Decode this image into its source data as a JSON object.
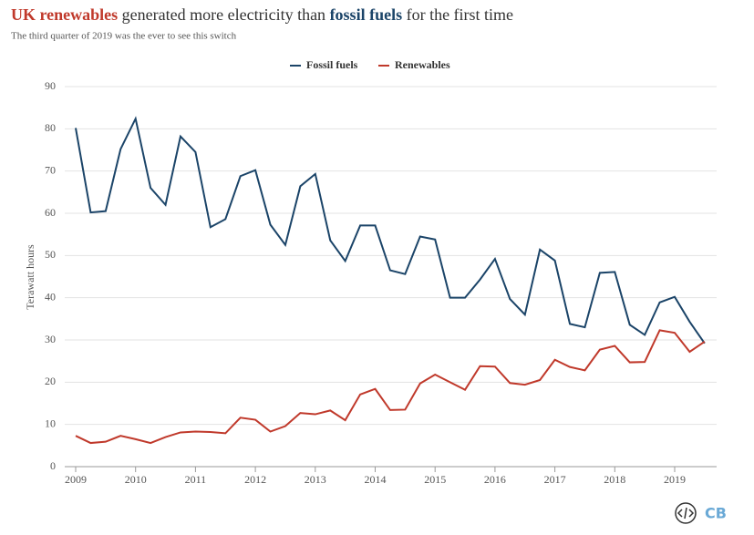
{
  "chart_data": {
    "type": "line",
    "title": [
      "UK renewables",
      " generated more electricity than ",
      "fossil fuels",
      " for the first time"
    ],
    "title_colors": [
      "#c0392b",
      "#333333",
      "#1b4468",
      "#333333"
    ],
    "subtitle": "The third quarter of 2019 was the ever to see this switch",
    "y_label": "Terawatt hours",
    "logo": "CB",
    "x": [
      2009,
      2009.25,
      2009.5,
      2009.75,
      2010,
      2010.25,
      2010.5,
      2010.75,
      2011,
      2011.25,
      2011.5,
      2011.75,
      2012,
      2012.25,
      2012.5,
      2012.75,
      2013,
      2013.25,
      2013.5,
      2013.75,
      2014,
      2014.25,
      2014.5,
      2014.75,
      2015,
      2015.25,
      2015.5,
      2015.75,
      2016,
      2016.25,
      2016.5,
      2016.75,
      2017,
      2017.25,
      2017.5,
      2017.75,
      2018,
      2018.25,
      2018.5,
      2018.75,
      2019,
      2019.25,
      2019.5
    ],
    "series": [
      {
        "name": "Fossil fuels",
        "color": "#1b4468",
        "values": [
          80.2,
          60.2,
          60.5,
          75.2,
          82.4,
          66.0,
          62.0,
          78.2,
          74.5,
          56.7,
          58.6,
          68.8,
          70.2,
          57.3,
          52.5,
          66.4,
          69.3,
          53.6,
          48.7,
          57.1,
          57.1,
          46.5,
          45.6,
          54.5,
          53.8,
          40.0,
          40.0,
          44.3,
          49.2,
          39.7,
          36.0,
          51.4,
          48.8,
          33.8,
          33.0,
          45.9,
          46.1,
          33.6,
          31.2,
          38.9,
          40.2,
          34.3,
          29.2
        ]
      },
      {
        "name": "Renewables",
        "color": "#c0392b",
        "values": [
          7.3,
          5.6,
          5.9,
          7.3,
          6.5,
          5.6,
          7.0,
          8.1,
          8.3,
          8.2,
          7.9,
          11.6,
          11.1,
          8.3,
          9.6,
          12.7,
          12.4,
          13.3,
          11.0,
          17.1,
          18.4,
          13.4,
          13.5,
          19.7,
          21.8,
          20.0,
          18.2,
          23.8,
          23.7,
          19.8,
          19.4,
          20.5,
          25.3,
          23.6,
          22.8,
          27.7,
          28.6,
          24.7,
          24.8,
          32.3,
          31.7,
          27.2,
          29.6
        ]
      }
    ],
    "xlim": [
      2009,
      2019.7
    ],
    "xticks": [
      2009,
      2010,
      2011,
      2012,
      2013,
      2014,
      2015,
      2016,
      2017,
      2018,
      2019
    ],
    "ylim": [
      0,
      90
    ],
    "yticks": [
      0,
      10,
      20,
      30,
      40,
      50,
      60,
      70,
      80,
      90
    ],
    "grid": true
  }
}
